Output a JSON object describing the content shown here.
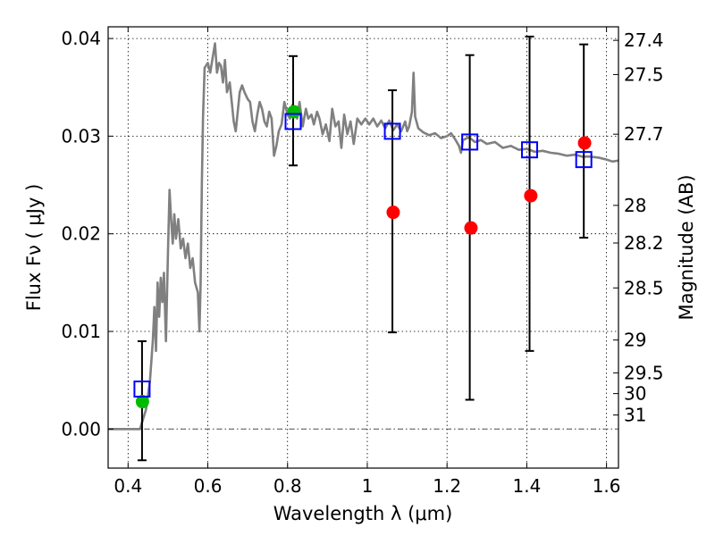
{
  "chart_data": {
    "type": "scatter",
    "xlabel": "Wavelength  λ (μm)",
    "ylabel": "Flux  Fν  ( μJy )",
    "y2label": "Magnitude (AB)",
    "xlim": [
      0.35,
      1.63
    ],
    "ylim": [
      -0.004,
      0.0412
    ],
    "grid": true,
    "x_ticks": [
      {
        "value": 0.4,
        "label": "0.4"
      },
      {
        "value": 0.6,
        "label": "0.6"
      },
      {
        "value": 0.8,
        "label": "0.8"
      },
      {
        "value": 1.0,
        "label": "1"
      },
      {
        "value": 1.2,
        "label": "1.2"
      },
      {
        "value": 1.4,
        "label": "1.4"
      },
      {
        "value": 1.6,
        "label": "1.6"
      }
    ],
    "y_ticks": [
      {
        "value": 0.0,
        "label": "0.00"
      },
      {
        "value": 0.01,
        "label": "0.01"
      },
      {
        "value": 0.02,
        "label": "0.02"
      },
      {
        "value": 0.03,
        "label": "0.03"
      },
      {
        "value": 0.04,
        "label": "0.04"
      }
    ],
    "mag_ticks": [
      {
        "mag": 27.4,
        "label": "27.4"
      },
      {
        "mag": 27.5,
        "label": "27.5"
      },
      {
        "mag": 27.7,
        "label": "27.7"
      },
      {
        "mag": 28,
        "label": "28"
      },
      {
        "mag": 28.2,
        "label": "28.2"
      },
      {
        "mag": 28.5,
        "label": "28.5"
      },
      {
        "mag": 29,
        "label": "29"
      },
      {
        "mag": 29.5,
        "label": "29.5"
      },
      {
        "mag": 30,
        "label": "30"
      },
      {
        "mag": 31,
        "label": "31"
      }
    ],
    "colors": {
      "spectrum": "#808080",
      "observed": "#0000ff",
      "errorbar": "#000000",
      "red_points": "#ff0000",
      "green_points": "#00bb00",
      "zero_line": "#555555"
    },
    "series": [
      {
        "kind": "spectrum",
        "points": [
          [
            0.35,
            0.0
          ],
          [
            0.43,
            0.0
          ],
          [
            0.445,
            0.002
          ],
          [
            0.455,
            0.005
          ],
          [
            0.462,
            0.009
          ],
          [
            0.466,
            0.0125
          ],
          [
            0.47,
            0.008
          ],
          [
            0.474,
            0.015
          ],
          [
            0.478,
            0.0115
          ],
          [
            0.482,
            0.0155
          ],
          [
            0.486,
            0.013
          ],
          [
            0.49,
            0.016
          ],
          [
            0.495,
            0.009
          ],
          [
            0.5,
            0.018
          ],
          [
            0.504,
            0.0245
          ],
          [
            0.508,
            0.0215
          ],
          [
            0.512,
            0.019
          ],
          [
            0.516,
            0.022
          ],
          [
            0.52,
            0.0195
          ],
          [
            0.526,
            0.0215
          ],
          [
            0.532,
            0.0185
          ],
          [
            0.538,
            0.0195
          ],
          [
            0.544,
            0.0175
          ],
          [
            0.55,
            0.019
          ],
          [
            0.556,
            0.0165
          ],
          [
            0.562,
            0.0175
          ],
          [
            0.568,
            0.015
          ],
          [
            0.575,
            0.014
          ],
          [
            0.579,
            0.01
          ],
          [
            0.582,
            0.015
          ],
          [
            0.585,
            0.025
          ],
          [
            0.588,
            0.032
          ],
          [
            0.592,
            0.037
          ],
          [
            0.6,
            0.0375
          ],
          [
            0.606,
            0.0365
          ],
          [
            0.612,
            0.038
          ],
          [
            0.618,
            0.0395
          ],
          [
            0.623,
            0.0365
          ],
          [
            0.628,
            0.0375
          ],
          [
            0.633,
            0.0372
          ],
          [
            0.638,
            0.0355
          ],
          [
            0.643,
            0.0378
          ],
          [
            0.648,
            0.0345
          ],
          [
            0.655,
            0.0355
          ],
          [
            0.66,
            0.0335
          ],
          [
            0.665,
            0.0315
          ],
          [
            0.67,
            0.0305
          ],
          [
            0.675,
            0.0325
          ],
          [
            0.68,
            0.0345
          ],
          [
            0.686,
            0.0352
          ],
          [
            0.692,
            0.0345
          ],
          [
            0.7,
            0.0338
          ],
          [
            0.706,
            0.0335
          ],
          [
            0.712,
            0.0315
          ],
          [
            0.718,
            0.0305
          ],
          [
            0.724,
            0.0322
          ],
          [
            0.73,
            0.0335
          ],
          [
            0.736,
            0.0328
          ],
          [
            0.742,
            0.0315
          ],
          [
            0.748,
            0.031
          ],
          [
            0.754,
            0.0325
          ],
          [
            0.76,
            0.0318
          ],
          [
            0.766,
            0.028
          ],
          [
            0.772,
            0.029
          ],
          [
            0.778,
            0.0305
          ],
          [
            0.785,
            0.0312
          ],
          [
            0.792,
            0.0335
          ],
          [
            0.8,
            0.0322
          ],
          [
            0.806,
            0.0318
          ],
          [
            0.812,
            0.0332
          ],
          [
            0.818,
            0.0325
          ],
          [
            0.824,
            0.0318
          ],
          [
            0.83,
            0.0335
          ],
          [
            0.838,
            0.031
          ],
          [
            0.846,
            0.0328
          ],
          [
            0.852,
            0.0318
          ],
          [
            0.86,
            0.0322
          ],
          [
            0.866,
            0.0312
          ],
          [
            0.874,
            0.0325
          ],
          [
            0.88,
            0.0318
          ],
          [
            0.888,
            0.0302
          ],
          [
            0.896,
            0.0312
          ],
          [
            0.905,
            0.0295
          ],
          [
            0.912,
            0.0328
          ],
          [
            0.92,
            0.031
          ],
          [
            0.928,
            0.0315
          ],
          [
            0.935,
            0.0288
          ],
          [
            0.942,
            0.0322
          ],
          [
            0.95,
            0.0302
          ],
          [
            0.958,
            0.0315
          ],
          [
            0.966,
            0.0292
          ],
          [
            0.975,
            0.0318
          ],
          [
            0.985,
            0.0312
          ],
          [
            0.995,
            0.0318
          ],
          [
            1.005,
            0.0312
          ],
          [
            1.015,
            0.0318
          ],
          [
            1.025,
            0.031
          ],
          [
            1.035,
            0.0316
          ],
          [
            1.045,
            0.0308
          ],
          [
            1.055,
            0.0316
          ],
          [
            1.065,
            0.0306
          ],
          [
            1.075,
            0.0312
          ],
          [
            1.085,
            0.0305
          ],
          [
            1.095,
            0.0315
          ],
          [
            1.1,
            0.0305
          ],
          [
            1.105,
            0.031
          ],
          [
            1.112,
            0.0325
          ],
          [
            1.116,
            0.0365
          ],
          [
            1.12,
            0.032
          ],
          [
            1.128,
            0.0308
          ],
          [
            1.14,
            0.0304
          ],
          [
            1.155,
            0.0301
          ],
          [
            1.17,
            0.0303
          ],
          [
            1.185,
            0.0298
          ],
          [
            1.2,
            0.03
          ],
          [
            1.21,
            0.0303
          ],
          [
            1.22,
            0.0297
          ],
          [
            1.23,
            0.029
          ],
          [
            1.235,
            0.0283
          ],
          [
            1.24,
            0.0296
          ],
          [
            1.255,
            0.0299
          ],
          [
            1.27,
            0.0294
          ],
          [
            1.285,
            0.0296
          ],
          [
            1.3,
            0.0292
          ],
          [
            1.32,
            0.0294
          ],
          [
            1.34,
            0.0288
          ],
          [
            1.36,
            0.029
          ],
          [
            1.38,
            0.0286
          ],
          [
            1.4,
            0.0287
          ],
          [
            1.42,
            0.0284
          ],
          [
            1.44,
            0.0285
          ],
          [
            1.46,
            0.0283
          ],
          [
            1.48,
            0.0282
          ],
          [
            1.5,
            0.028
          ],
          [
            1.52,
            0.0281
          ],
          [
            1.54,
            0.0279
          ],
          [
            1.56,
            0.0279
          ],
          [
            1.58,
            0.0278
          ],
          [
            1.6,
            0.0276
          ],
          [
            1.615,
            0.0274
          ],
          [
            1.63,
            0.0275
          ]
        ]
      },
      {
        "kind": "observed",
        "points": [
          {
            "x": 0.435,
            "y": 0.0041,
            "yerr_low": 0.0073,
            "yerr_high": 0.0049
          },
          {
            "x": 0.814,
            "y": 0.0315,
            "yerr_low": 0.0045,
            "yerr_high": 0.0067
          },
          {
            "x": 1.063,
            "y": 0.0305,
            "yerr_low": 0.0206,
            "yerr_high": 0.0042
          },
          {
            "x": 1.257,
            "y": 0.0294,
            "yerr_low": 0.0264,
            "yerr_high": 0.0089
          },
          {
            "x": 1.407,
            "y": 0.0286,
            "yerr_low": 0.0206,
            "yerr_high": 0.0116
          },
          {
            "x": 1.543,
            "y": 0.0276,
            "yerr_low": 0.008,
            "yerr_high": 0.0118
          }
        ]
      },
      {
        "kind": "model-red",
        "points": [
          {
            "x": 1.065,
            "y": 0.0222
          },
          {
            "x": 1.26,
            "y": 0.0206
          },
          {
            "x": 1.41,
            "y": 0.0239
          },
          {
            "x": 1.545,
            "y": 0.0293
          }
        ]
      },
      {
        "kind": "model-green",
        "points": [
          {
            "x": 0.436,
            "y": 0.0028
          },
          {
            "x": 0.816,
            "y": 0.0325
          }
        ]
      }
    ]
  }
}
